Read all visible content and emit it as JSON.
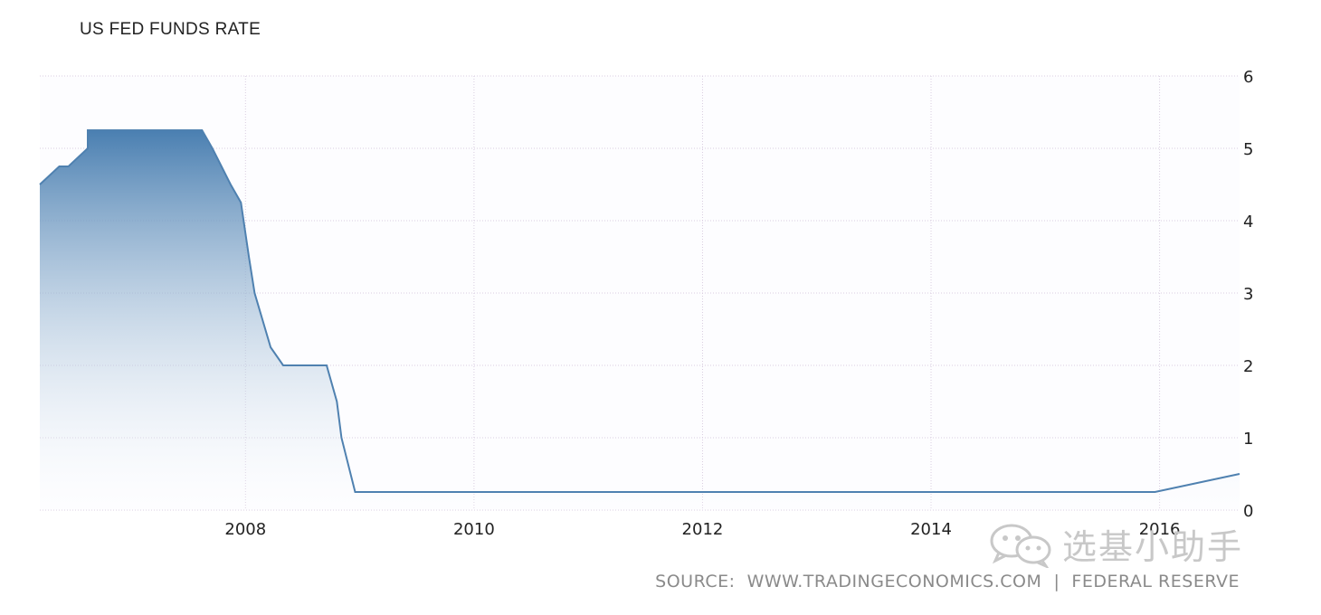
{
  "chart_data": {
    "type": "area",
    "title": "US FED FUNDS RATE",
    "xlabel": "",
    "ylabel": "",
    "xlim": [
      2006.2,
      2016.7
    ],
    "ylim": [
      0,
      6
    ],
    "y_ticks": [
      0,
      1,
      2,
      3,
      4,
      5,
      6
    ],
    "x_ticks": [
      2008,
      2010,
      2012,
      2014,
      2016
    ],
    "y_axis_position": "right",
    "grid": true,
    "series": [
      {
        "x": [
          2006.2,
          2006.37,
          2006.45,
          2006.62,
          2006.62,
          2007.62,
          2007.71,
          2007.79,
          2007.87,
          2007.96,
          2008.03,
          2008.08,
          2008.22,
          2008.33,
          2008.71,
          2008.8,
          2008.84,
          2008.96,
          2015.96,
          2016.7
        ],
        "y": [
          4.5,
          4.75,
          4.75,
          5.0,
          5.25,
          5.25,
          5.0,
          4.75,
          4.5,
          4.25,
          3.5,
          3.0,
          2.25,
          2.0,
          2.0,
          1.5,
          1.0,
          0.25,
          0.25,
          0.5
        ]
      }
    ],
    "colors": {
      "line": "#4f81b0",
      "fill_top": "#4a7fb1",
      "fill_bottom": "#ffffff",
      "grid": "#d9cde0"
    }
  },
  "source": "SOURCE:  WWW.TRADINGECONOMICS.COM  |  FEDERAL RESERVE",
  "watermark": {
    "text": "选基小助手",
    "icon": "wechat-icon"
  }
}
